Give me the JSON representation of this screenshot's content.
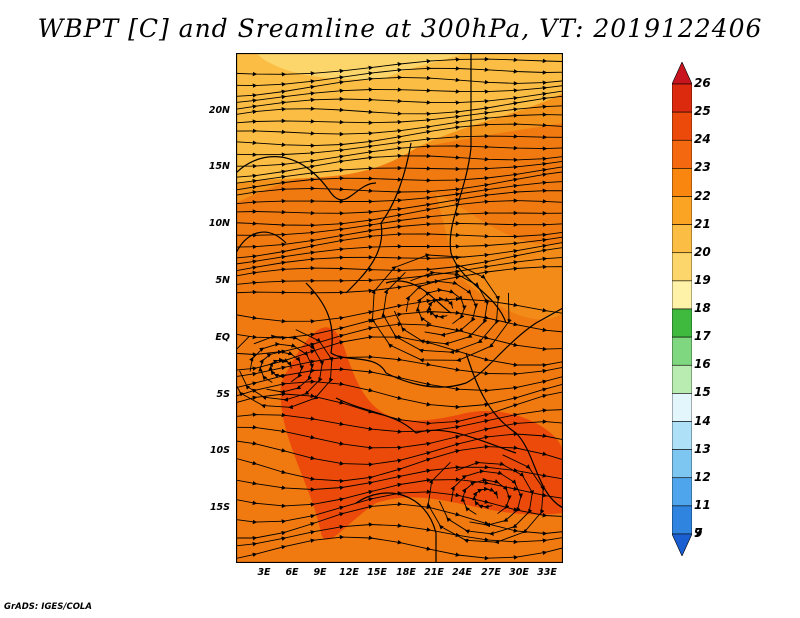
{
  "title": "WBPT [C] and Sreamline at 300hPa, VT: 2019122406",
  "footer": "GrADS: IGES/COLA",
  "axes": {
    "lat_labels": [
      "20N",
      "15N",
      "10N",
      "5N",
      "EQ",
      "5S",
      "10S",
      "15S"
    ],
    "lon_labels": [
      "3E",
      "6E",
      "9E",
      "12E",
      "15E",
      "18E",
      "21E",
      "24E",
      "27E",
      "30E",
      "33E"
    ]
  },
  "colorbar": {
    "labels": [
      "26",
      "25",
      "24",
      "23",
      "22",
      "21",
      "20",
      "19",
      "18",
      "17",
      "16",
      "15",
      "14",
      "13",
      "12",
      "11",
      "9",
      "7"
    ],
    "colors": [
      "#c8141e",
      "#dc2a0f",
      "#ec4a0a",
      "#f4680f",
      "#f9860f",
      "#fba323",
      "#fbbd43",
      "#fcd66a",
      "#fef1a8",
      "#3fba3f",
      "#7fd87f",
      "#b8ecb0",
      "#e3f6fb",
      "#aee0f8",
      "#7dc6f2",
      "#4fa5eb",
      "#2f84e0",
      "#1a5fd1"
    ]
  },
  "map_colors": {
    "deep": "#f07a10",
    "warm": "#f4931c",
    "hot": "#ec4a0a",
    "cool": "#fbbd43",
    "pale": "#fcd66a"
  }
}
